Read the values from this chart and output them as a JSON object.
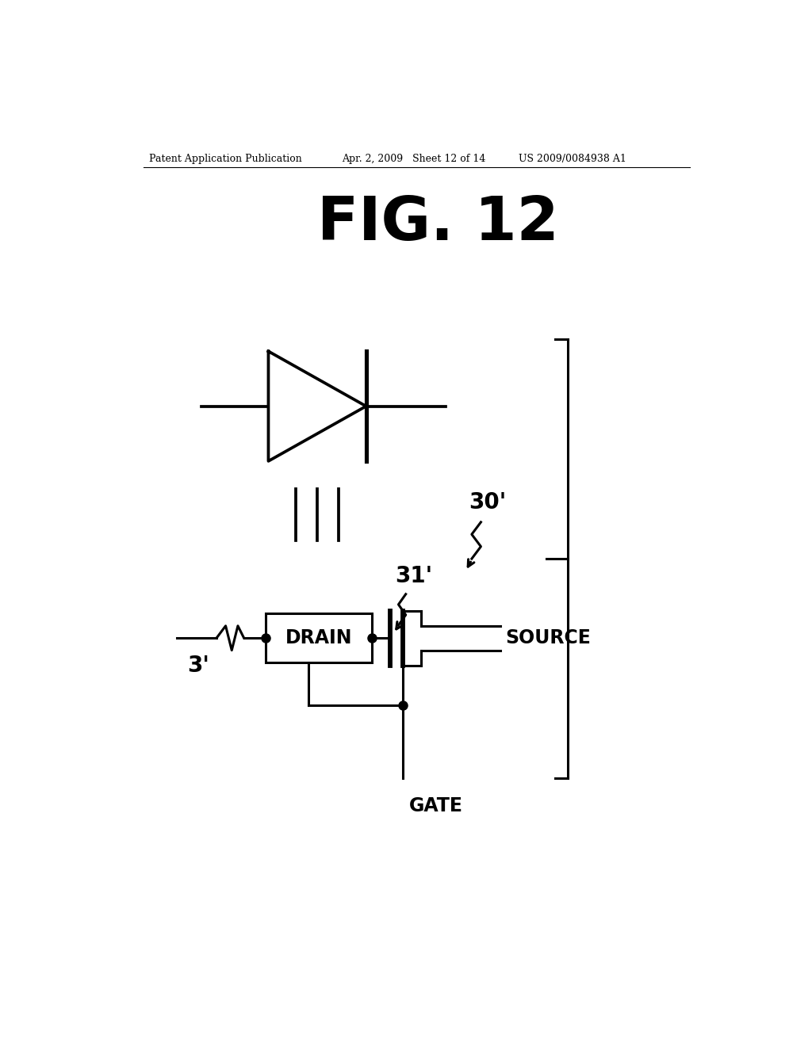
{
  "title": "FIG. 12",
  "header_left": "Patent Application Publication",
  "header_mid": "Apr. 2, 2009   Sheet 12 of 14",
  "header_right": "US 2009/0084938 A1",
  "bg_color": "#ffffff",
  "line_color": "#000000",
  "lw": 2.2,
  "label_30": "30'",
  "label_31": "31'",
  "label_3": "3'",
  "label_drain": "DRAIN",
  "label_source": "SOURCE",
  "label_gate": "GATE"
}
